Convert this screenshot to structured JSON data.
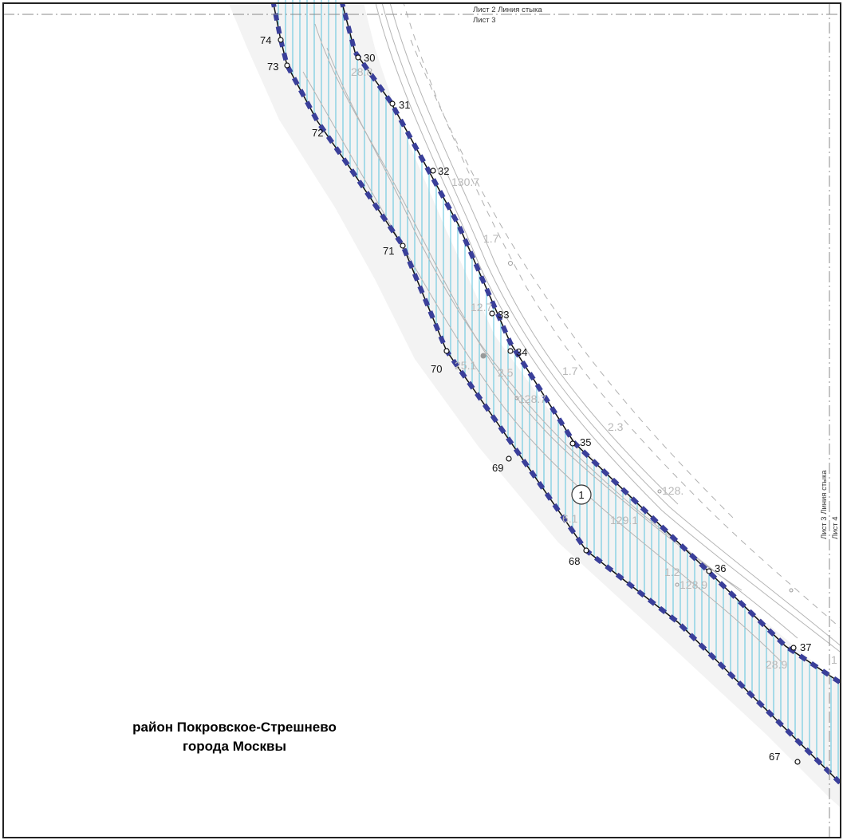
{
  "sheet_labels": {
    "top_line": "Лист 2 Линия стыка",
    "top_sheet": "Лист 3",
    "right_line": "Лист 3 Линия стыка",
    "right_sheet": "Лист 4"
  },
  "district": {
    "line1": "район Покровское-Стрешнево",
    "line2": "города Москвы"
  },
  "zone_number": "1",
  "points": [
    "74",
    "73",
    "72",
    "71",
    "70",
    "69",
    "68",
    "67",
    "30",
    "31",
    "32",
    "33",
    "34",
    "35",
    "36",
    "37"
  ],
  "elevations": [
    "28.8",
    "130.7",
    "1.7",
    "12.7",
    "25.1",
    "2.5",
    "128.7",
    "2.3",
    "128.",
    "129.1",
    "1.7",
    "6.1",
    "1.2",
    "128.9",
    "28.9",
    "1"
  ],
  "colors": {
    "boundary_dash": "#3a3f9a",
    "hatch": "#5bc3dc",
    "background_band": "#f3f3f3",
    "contour": "#b5b5b5"
  }
}
